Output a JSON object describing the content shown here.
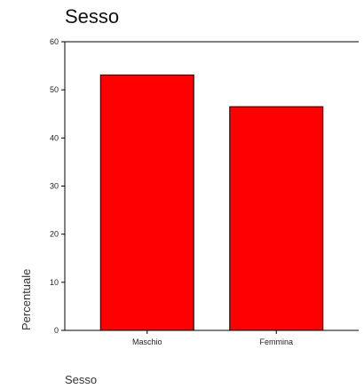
{
  "chart_data": {
    "type": "bar",
    "title": "Sesso",
    "xlabel": "Sesso",
    "ylabel": "Percentuale",
    "categories": [
      "Maschio",
      "Femmina"
    ],
    "values": [
      53.1,
      46.5
    ],
    "ylim": [
      0,
      60
    ],
    "yticks": [
      0,
      10,
      20,
      30,
      40,
      50,
      60
    ],
    "grid": false,
    "bar_color": "#ff0000",
    "bar_edge_color": "#000000"
  }
}
